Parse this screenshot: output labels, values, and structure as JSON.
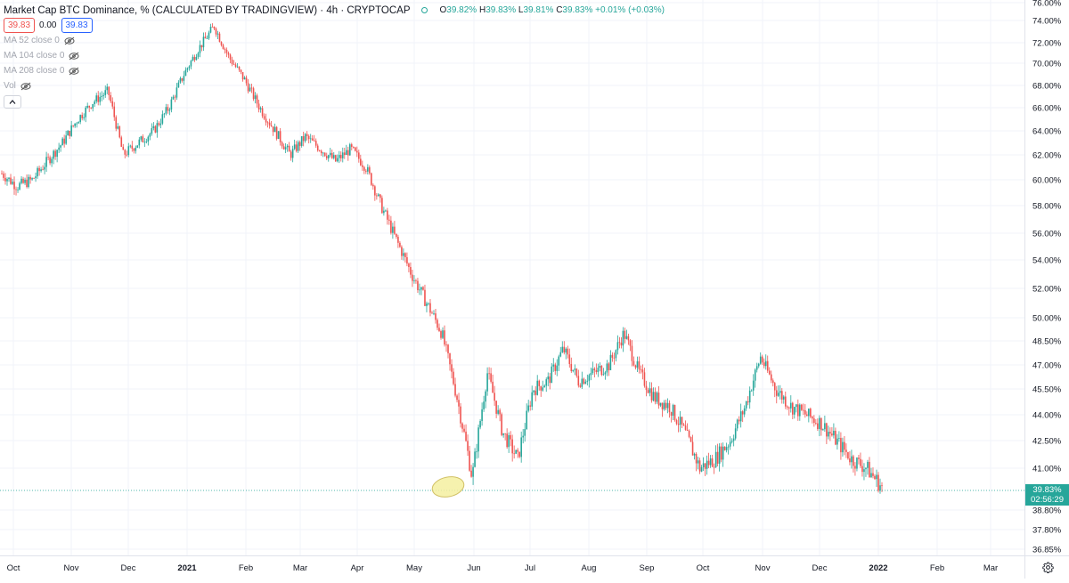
{
  "legend": {
    "title": "Market Cap BTC Dominance, % (CALCULATED BY TRADINGVIEW) · 4h · CRYPTOCAP",
    "ohlc": [
      {
        "k": "O",
        "v": "39.82%"
      },
      {
        "k": "H",
        "v": "39.83%"
      },
      {
        "k": "L",
        "v": "39.81%"
      },
      {
        "k": "C",
        "v": "39.83%"
      }
    ],
    "change": "+0.01% (+0.03%)",
    "sell_price": "39.83",
    "spread": "0.00",
    "buy_price": "39.83",
    "indicators": [
      "MA 52 close 0",
      "MA 104 close 0",
      "MA 208 close 0",
      "Vol"
    ],
    "collapse_icon": "chevron-up-icon"
  },
  "last_price": {
    "value": "39.83%",
    "countdown": "02:56:29"
  },
  "colors": {
    "up": "#26a69a",
    "down": "#ef5350",
    "grid": "#f0f3fa",
    "highlight": "#f5f0a0"
  },
  "chart_data": {
    "type": "line",
    "y_tick_labels": [
      "76.00%",
      "74.00%",
      "72.00%",
      "70.00%",
      "68.00%",
      "66.00%",
      "64.00%",
      "62.00%",
      "60.00%",
      "58.00%",
      "56.00%",
      "54.00%",
      "52.00%",
      "50.00%",
      "48.50%",
      "47.00%",
      "45.50%",
      "44.00%",
      "42.50%",
      "41.00%",
      "38.80%",
      "37.80%",
      "36.85%"
    ],
    "x_tick_labels": [
      "Oct",
      "Nov",
      "Dec",
      "2021",
      "Feb",
      "Mar",
      "Apr",
      "May",
      "Jun",
      "Jul",
      "Aug",
      "Sep",
      "Oct",
      "Nov",
      "Dec",
      "2022",
      "Feb",
      "Mar"
    ],
    "series": [
      {
        "values": [
          60.5,
          59.5,
          60.0,
          61.5,
          63.0,
          65.0,
          66.5,
          67.5,
          62.0,
          63.0,
          64.0,
          66.0,
          69.0,
          71.5,
          73.5,
          70.5,
          68.5,
          66.0,
          64.0,
          62.0,
          63.5,
          62.5,
          61.5,
          62.5,
          61.0,
          58.0,
          55.5,
          53.0,
          51.0,
          49.0,
          45.0,
          40.5,
          46.5,
          43.0,
          41.5,
          45.5,
          46.0,
          48.0,
          46.0,
          46.5,
          47.0,
          49.0,
          46.5,
          45.0,
          44.5,
          43.0,
          41.0,
          41.5,
          42.5,
          44.5,
          47.5,
          45.5,
          44.5,
          44.0,
          43.5,
          42.5,
          41.5,
          41.0,
          40.0
        ]
      }
    ],
    "annotations": [
      {
        "type": "ellipse",
        "label": ""
      }
    ],
    "grid": true
  }
}
